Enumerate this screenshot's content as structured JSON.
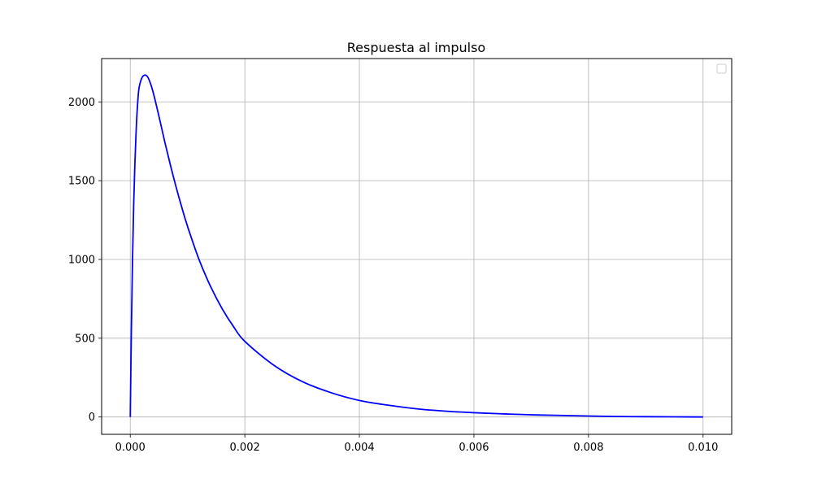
{
  "chart_data": {
    "type": "line",
    "title": "Respuesta al impulso",
    "xlabel": "",
    "ylabel": "",
    "xlim": [
      -0.0005,
      0.0105
    ],
    "ylim": [
      -110,
      2275
    ],
    "x_ticks": [
      0.0,
      0.002,
      0.004,
      0.006,
      0.008,
      0.01
    ],
    "x_tick_labels": [
      "0.000",
      "0.002",
      "0.004",
      "0.006",
      "0.008",
      "0.010"
    ],
    "y_ticks": [
      0,
      500,
      1000,
      1500,
      2000
    ],
    "y_tick_labels": [
      "0",
      "500",
      "1000",
      "1500",
      "2000"
    ],
    "grid": true,
    "legend": {
      "placement": "upper-right",
      "entries": []
    },
    "series": [
      {
        "color": "#0000ff",
        "x": [
          0.0,
          2e-05,
          4e-05,
          6e-05,
          8e-05,
          0.0001,
          0.00012,
          0.00015,
          0.0002,
          0.00025,
          0.0003,
          0.00035,
          0.0004,
          0.0005,
          0.0006,
          0.0007,
          0.0008,
          0.0009,
          0.001,
          0.0012,
          0.0014,
          0.0016,
          0.0018,
          0.002,
          0.0025,
          0.003,
          0.0035,
          0.004,
          0.0045,
          0.005,
          0.0055,
          0.006,
          0.0065,
          0.007,
          0.0075,
          0.008,
          0.0085,
          0.009,
          0.0095,
          0.01
        ],
        "y": [
          0,
          570,
          1010,
          1350,
          1600,
          1790,
          1940,
          2080,
          2150,
          2170,
          2160,
          2120,
          2060,
          1910,
          1750,
          1600,
          1460,
          1330,
          1210,
          1000,
          830,
          690,
          575,
          480,
          330,
          225,
          155,
          105,
          75,
          52,
          37,
          27,
          20,
          14,
          10,
          6,
          3,
          2,
          1,
          0
        ]
      }
    ]
  }
}
